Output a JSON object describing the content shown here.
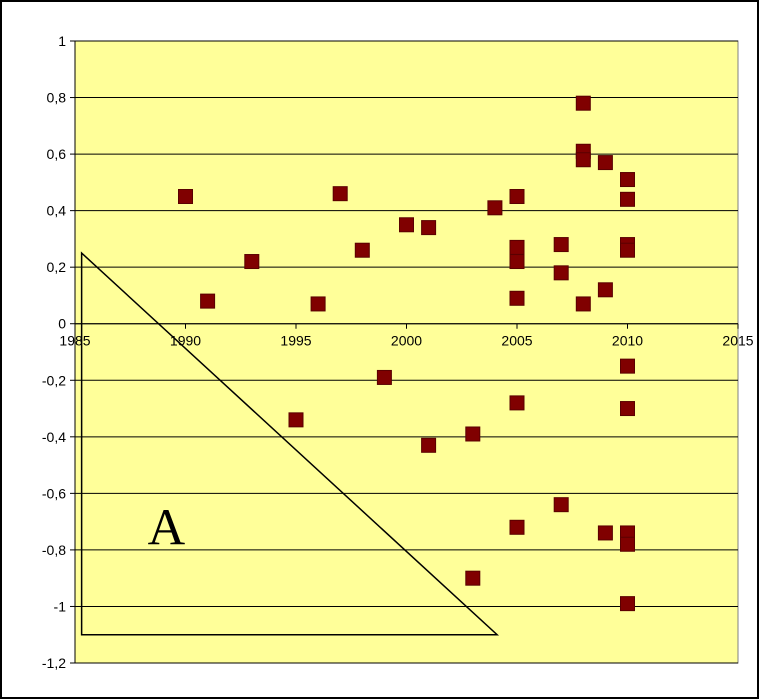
{
  "chart_data": {
    "type": "scatter",
    "title": "",
    "xlabel": "",
    "ylabel": "",
    "xlim": [
      1985,
      2015
    ],
    "ylim": [
      -1.2,
      1
    ],
    "x_ticks": [
      1985,
      1990,
      1995,
      2000,
      2005,
      2010,
      2015
    ],
    "x_tick_labels": [
      "1985",
      "1990",
      "1995",
      "2000",
      "2005",
      "2010",
      "2015"
    ],
    "y_ticks": [
      1,
      0.8,
      0.6,
      0.4,
      0.2,
      0,
      -0.2,
      -0.4,
      -0.6,
      -0.8,
      -1,
      -1.2
    ],
    "y_tick_labels": [
      "1",
      "0,8",
      "0,6",
      "0,4",
      "0,2",
      "0",
      "-0,2",
      "-0,4",
      "-0,6",
      "-0,8",
      "-1",
      "-1,2"
    ],
    "grid": "horizontal",
    "legend": "none",
    "colors": {
      "plot_background": "#ffff99",
      "marker": "#800000",
      "gridline": "#000000"
    },
    "series": [
      {
        "marker": "square",
        "points": [
          {
            "x": 1990,
            "y": 0.45
          },
          {
            "x": 1991,
            "y": 0.08
          },
          {
            "x": 1993,
            "y": 0.22
          },
          {
            "x": 1995,
            "y": -0.34
          },
          {
            "x": 1996,
            "y": 0.07
          },
          {
            "x": 1997,
            "y": 0.46
          },
          {
            "x": 1998,
            "y": 0.26
          },
          {
            "x": 1999,
            "y": -0.19
          },
          {
            "x": 2000,
            "y": 0.35
          },
          {
            "x": 2001,
            "y": 0.34
          },
          {
            "x": 2001,
            "y": -0.43
          },
          {
            "x": 2003,
            "y": -0.39
          },
          {
            "x": 2003,
            "y": -0.9
          },
          {
            "x": 2004,
            "y": 0.41
          },
          {
            "x": 2005,
            "y": 0.45
          },
          {
            "x": 2005,
            "y": 0.27
          },
          {
            "x": 2005,
            "y": 0.22
          },
          {
            "x": 2005,
            "y": 0.09
          },
          {
            "x": 2005,
            "y": -0.28
          },
          {
            "x": 2005,
            "y": -0.72
          },
          {
            "x": 2007,
            "y": 0.28
          },
          {
            "x": 2007,
            "y": 0.18
          },
          {
            "x": 2007,
            "y": -0.64
          },
          {
            "x": 2008,
            "y": 0.78
          },
          {
            "x": 2008,
            "y": 0.61
          },
          {
            "x": 2008,
            "y": 0.58
          },
          {
            "x": 2008,
            "y": 0.07
          },
          {
            "x": 2009,
            "y": 0.57
          },
          {
            "x": 2009,
            "y": 0.12
          },
          {
            "x": 2009,
            "y": -0.74
          },
          {
            "x": 2010,
            "y": 0.51
          },
          {
            "x": 2010,
            "y": 0.44
          },
          {
            "x": 2010,
            "y": 0.28
          },
          {
            "x": 2010,
            "y": 0.26
          },
          {
            "x": 2010,
            "y": -0.15
          },
          {
            "x": 2010,
            "y": -0.3
          },
          {
            "x": 2010,
            "y": -0.74
          },
          {
            "x": 2010,
            "y": -0.78
          },
          {
            "x": 2010,
            "y": -0.99
          }
        ]
      }
    ],
    "annotations": [
      {
        "label": "A",
        "shape": "triangle",
        "vertices": [
          {
            "x": 1985.3,
            "y": 0.25
          },
          {
            "x": 1985.3,
            "y": -1.1
          },
          {
            "x": 2004.1,
            "y": -1.1
          }
        ]
      }
    ]
  }
}
